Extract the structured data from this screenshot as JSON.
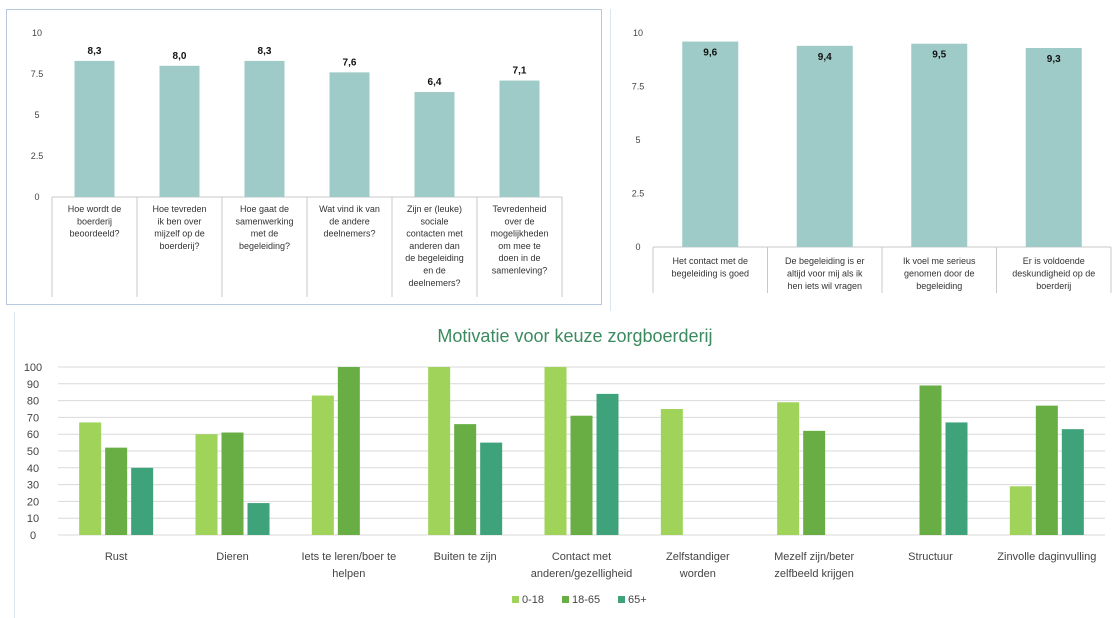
{
  "chart_data": [
    {
      "type": "bar",
      "title": "",
      "ylim": [
        0,
        10
      ],
      "yticks": [
        "10",
        "7.5",
        "5",
        "2.5",
        "0"
      ],
      "categories": [
        [
          "Hoe wordt de",
          "boerderij",
          "beoordeeld?"
        ],
        [
          "Hoe tevreden",
          "ik ben over",
          "mijzelf op de",
          "boerderij?"
        ],
        [
          "Hoe gaat de",
          "samenwerking",
          "met de",
          "begeleiding?"
        ],
        [
          "Wat vind ik van",
          "de andere",
          "deelnemers?"
        ],
        [
          "Zijn er (leuke)",
          "sociale",
          "contacten met",
          "anderen dan",
          "de begeleiding",
          "en de",
          "deelnemers?"
        ],
        [
          "Tevredenheid",
          "over de",
          "mogelijkheden",
          "om mee te",
          "doen in de",
          "samenleving?"
        ]
      ],
      "values": [
        8.3,
        8.0,
        8.3,
        7.6,
        6.4,
        7.1
      ],
      "labels": [
        "8,3",
        "8,0",
        "8,3",
        "7,6",
        "6,4",
        "7,1"
      ],
      "color": "#9ecbc7",
      "grid": false
    },
    {
      "type": "bar",
      "title": "",
      "ylim": [
        0,
        10
      ],
      "yticks": [
        "10",
        "7.5",
        "5",
        "2.5",
        "0"
      ],
      "categories": [
        [
          "Het contact met de",
          "begeleiding is goed"
        ],
        [
          "De begeleiding is er",
          "altijd voor mij als ik",
          "hen iets wil vragen"
        ],
        [
          "Ik voel me serieus",
          "genomen door de",
          "begeleiding"
        ],
        [
          "Er is voldoende",
          "deskundigheid op de",
          "boerderij"
        ]
      ],
      "values": [
        9.6,
        9.4,
        9.5,
        9.3
      ],
      "labels": [
        "9,6",
        "9,4",
        "9,5",
        "9,3"
      ],
      "color": "#9ecbc7",
      "grid": false
    },
    {
      "type": "bar",
      "title": "Motivatie voor keuze zorgboerderij",
      "ylim": [
        0,
        100
      ],
      "yticks": [
        "100",
        "90",
        "80",
        "70",
        "60",
        "50",
        "40",
        "30",
        "20",
        "10",
        "0"
      ],
      "grid": true,
      "legend_position": "bottom",
      "categories": [
        [
          "Rust"
        ],
        [
          "Dieren"
        ],
        [
          "Iets te leren/boer te",
          "helpen"
        ],
        [
          "Buiten te zijn"
        ],
        [
          "Contact met",
          "anderen/gezelligheid"
        ],
        [
          "Zelfstandiger",
          "worden"
        ],
        [
          "Mezelf zijn/beter",
          "zelfbeeld krijgen"
        ],
        [
          "Structuur"
        ],
        [
          "Zinvolle daginvulling"
        ]
      ],
      "series": [
        {
          "name": "0-18",
          "color": "#9fd35a",
          "values": [
            67,
            60,
            83,
            100,
            100,
            75,
            79,
            0,
            29
          ]
        },
        {
          "name": "18-65",
          "color": "#69ad45",
          "values": [
            52,
            61,
            100,
            66,
            71,
            0,
            62,
            89,
            77
          ]
        },
        {
          "name": "65+",
          "color": "#3ea27a",
          "values": [
            40,
            19,
            0,
            55,
            84,
            0,
            0,
            67,
            63
          ]
        }
      ]
    }
  ]
}
